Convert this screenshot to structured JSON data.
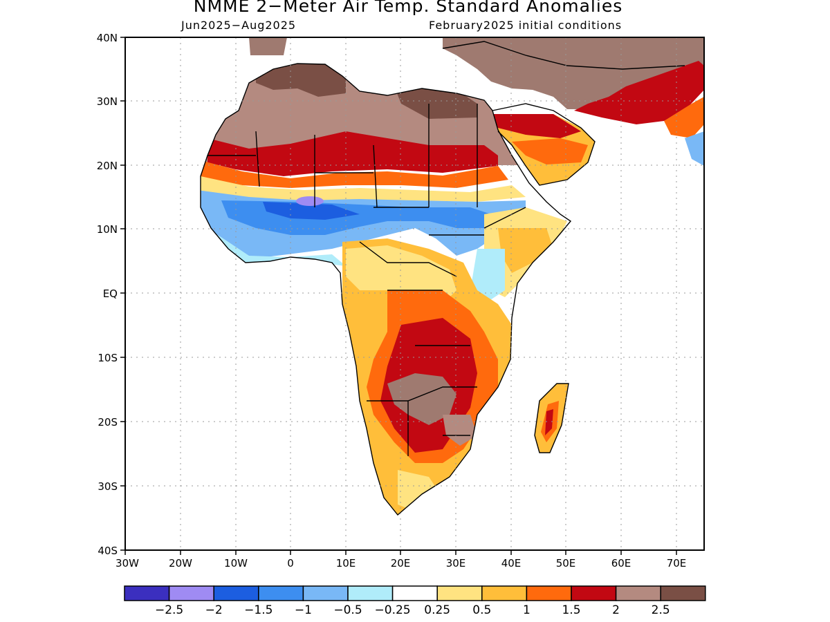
{
  "title": "NMME 2−Meter Air Temp. Standard Anomalies",
  "period": "Jun2025−Aug2025",
  "initial_conditions": "February2025 initial conditions",
  "lat_labels": [
    "40N",
    "30N",
    "20N",
    "10N",
    "EQ",
    "10S",
    "20S",
    "30S",
    "40S"
  ],
  "lon_labels": [
    "30W",
    "20W",
    "10W",
    "0",
    "10E",
    "20E",
    "30E",
    "40E",
    "50E",
    "60E",
    "70E"
  ],
  "colorbar": {
    "colors": [
      "#3b2fbf",
      "#9f8bf3",
      "#1c5ee0",
      "#3d8ef0",
      "#79b8f6",
      "#b0ecfa",
      "#ffffff",
      "#ffe381",
      "#ffbe3a",
      "#ff6a0d",
      "#c20812",
      "#b48a80",
      "#7a4f45"
    ],
    "labels": [
      "−2.5",
      "−2",
      "−1.5",
      "−1",
      "−0.5",
      "−0.25",
      "0.25",
      "0.5",
      "1",
      "1.5",
      "2",
      "2.5"
    ]
  },
  "legend_meaning": {
    "positive_anomaly_colors": "oranges/reds/browns",
    "negative_anomaly_colors": "blues/purple",
    "near_zero_color": "white"
  }
}
